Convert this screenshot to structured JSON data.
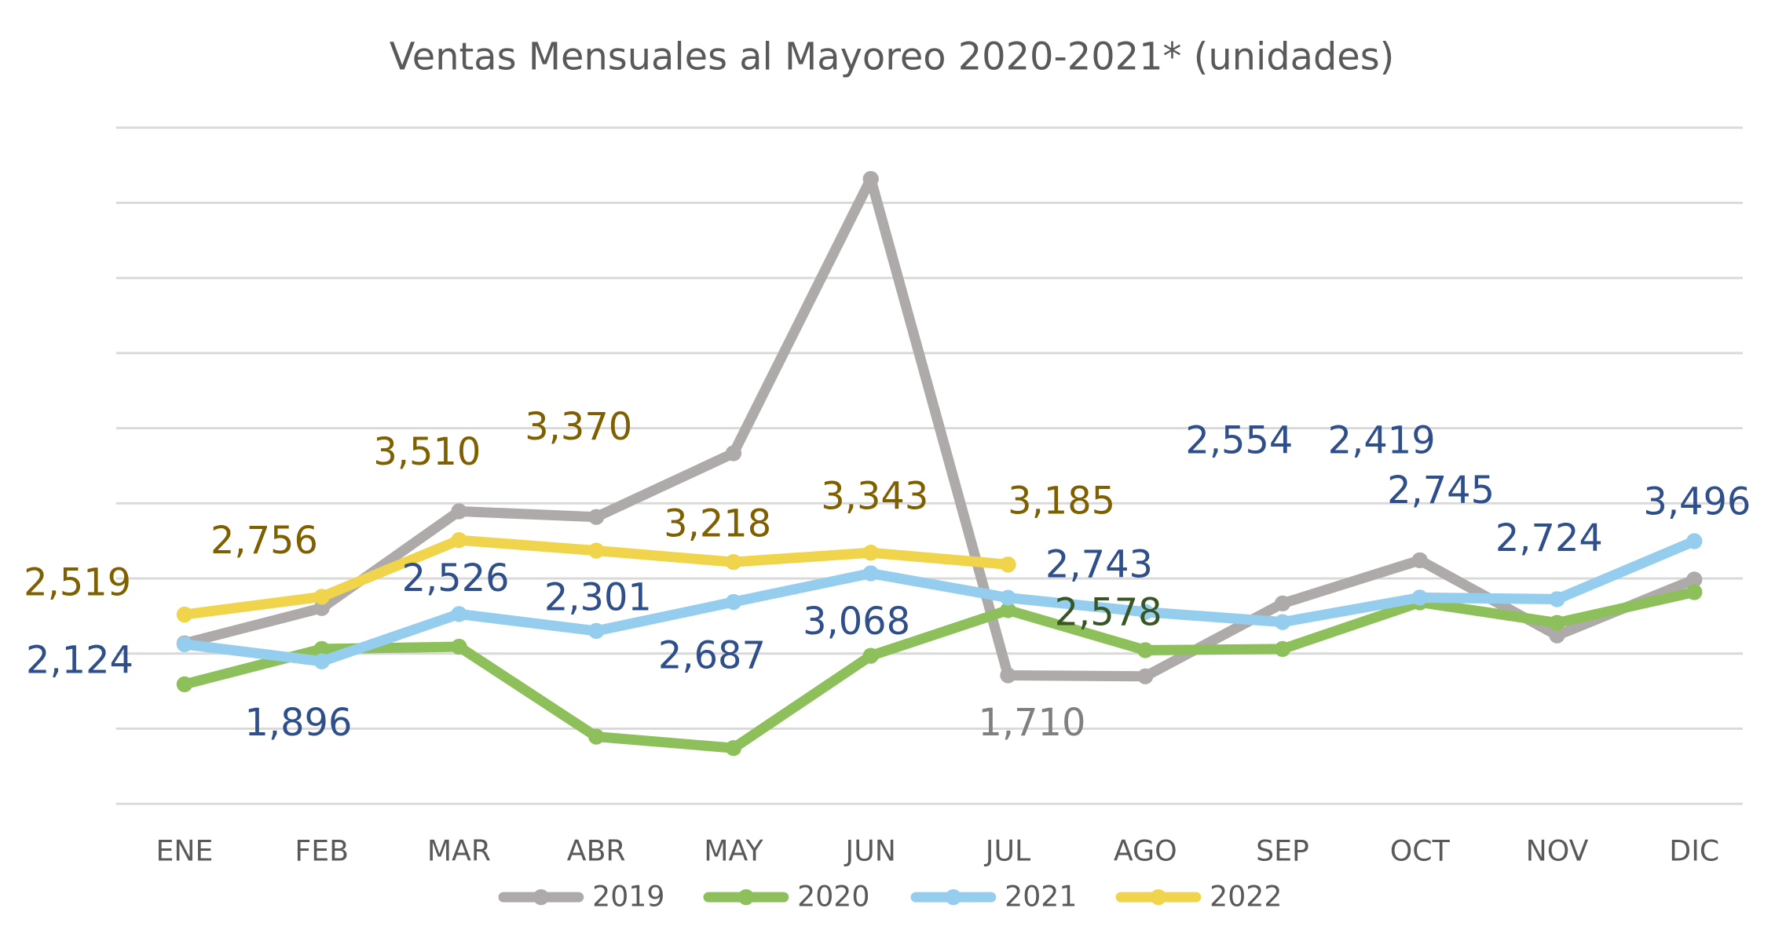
{
  "chart_data": {
    "type": "line",
    "title": "Ventas Mensuales al Mayoreo 2020-2021* (unidades)",
    "categories": [
      "ENE",
      "FEB",
      "MAR",
      "ABR",
      "MAY",
      "JUN",
      "JUL",
      "AGO",
      "SEP",
      "OCT",
      "NOV",
      "DIC"
    ],
    "ylim": [
      0,
      9000
    ],
    "yticks": [
      0,
      1000,
      2000,
      3000,
      4000,
      5000,
      6000,
      7000,
      8000,
      9000
    ],
    "grid": true,
    "legend": "bottom",
    "series": [
      {
        "name": "2019",
        "color": "#aeaaaa",
        "label_color": "#7f7f7f",
        "values": [
          2136,
          2606,
          3894,
          3818,
          4667,
          8318,
          1710,
          1697,
          2667,
          3242,
          2242,
          2985
        ],
        "value_labels": [
          null,
          null,
          null,
          null,
          null,
          null,
          "1,710",
          null,
          null,
          null,
          null,
          null
        ]
      },
      {
        "name": "2020",
        "color": "#8dc05a",
        "label_color": "#375623",
        "values": [
          1591,
          2061,
          2091,
          894,
          742,
          1970,
          2578,
          2045,
          2061,
          2682,
          2409,
          2818
        ],
        "value_labels": [
          null,
          null,
          null,
          null,
          null,
          null,
          "2,578",
          null,
          null,
          null,
          null,
          null
        ]
      },
      {
        "name": "2021",
        "color": "#94cdee",
        "label_color": "#2f4f8a",
        "values": [
          2124,
          1896,
          2526,
          2301,
          2687,
          3068,
          2743,
          2554,
          2419,
          2745,
          2724,
          3496
        ],
        "value_labels": [
          "2,124",
          "1,896",
          "2,526",
          "2,301",
          "2,687",
          "3,068",
          "2,743",
          "2,554",
          "2,419",
          "2,745",
          "2,724",
          "3,496"
        ]
      },
      {
        "name": "2022",
        "color": "#f0d44c",
        "label_color": "#7f6000",
        "values": [
          2519,
          2756,
          3510,
          3370,
          3218,
          3343,
          3185,
          null,
          null,
          null,
          null,
          null
        ],
        "value_labels": [
          "2,519",
          "2,756",
          "3,510",
          "3,370",
          "3,218",
          "3,343",
          "3,185",
          null,
          null,
          null,
          null,
          null
        ]
      }
    ]
  }
}
